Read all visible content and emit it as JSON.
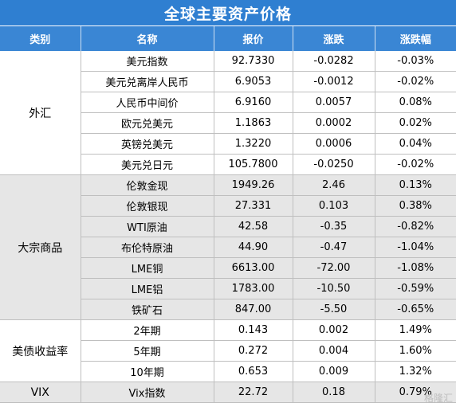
{
  "title": "全球主要资产价格",
  "columns": [
    "类别",
    "名称",
    "报价",
    "涨跌",
    "涨跌幅"
  ],
  "groups": [
    {
      "category": "外汇",
      "rows": [
        {
          "name": "美元指数",
          "price": "92.7330",
          "change": "-0.0282",
          "pct": "-0.03%"
        },
        {
          "name": "美元兑离岸人民币",
          "price": "6.9053",
          "change": "-0.0012",
          "pct": "-0.02%"
        },
        {
          "name": "人民币中间价",
          "price": "6.9160",
          "change": "0.0057",
          "pct": "0.08%"
        },
        {
          "name": "欧元兑美元",
          "price": "1.1863",
          "change": "0.0002",
          "pct": "0.02%"
        },
        {
          "name": "英镑兑美元",
          "price": "1.3220",
          "change": "0.0006",
          "pct": "0.04%"
        },
        {
          "name": "美元兑日元",
          "price": "105.7800",
          "change": "-0.0250",
          "pct": "-0.02%"
        }
      ]
    },
    {
      "category": "大宗商品",
      "rows": [
        {
          "name": "伦敦金现",
          "price": "1949.26",
          "change": "2.46",
          "pct": "0.13%"
        },
        {
          "name": "伦敦银现",
          "price": "27.331",
          "change": "0.103",
          "pct": "0.38%"
        },
        {
          "name": "WTI原油",
          "price": "42.58",
          "change": "-0.35",
          "pct": "-0.82%"
        },
        {
          "name": "布伦特原油",
          "price": "44.90",
          "change": "-0.47",
          "pct": "-1.04%"
        },
        {
          "name": "LME铜",
          "price": "6613.00",
          "change": "-72.00",
          "pct": "-1.08%"
        },
        {
          "name": "LME铝",
          "price": "1783.00",
          "change": "-10.50",
          "pct": "-0.59%"
        },
        {
          "name": "铁矿石",
          "price": "847.00",
          "change": "-5.50",
          "pct": "-0.65%"
        }
      ]
    },
    {
      "category": "美债收益率",
      "rows": [
        {
          "name": "2年期",
          "price": "0.143",
          "change": "0.002",
          "pct": "1.49%"
        },
        {
          "name": "5年期",
          "price": "0.272",
          "change": "0.004",
          "pct": "1.60%"
        },
        {
          "name": "10年期",
          "price": "0.653",
          "change": "0.009",
          "pct": "1.32%"
        }
      ]
    },
    {
      "category": "VIX",
      "rows": [
        {
          "name": "Vix指数",
          "price": "22.72",
          "change": "0.18",
          "pct": "0.79%"
        }
      ]
    }
  ],
  "watermark": "格隆汇"
}
